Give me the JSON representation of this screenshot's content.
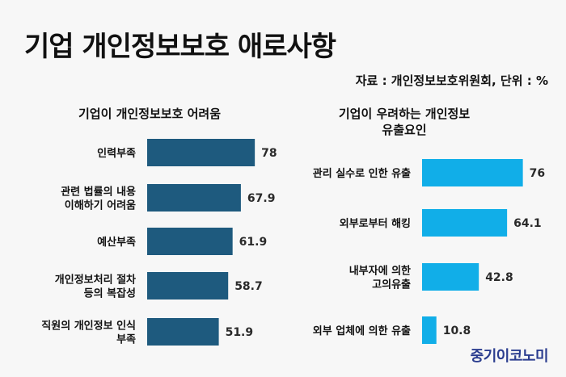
{
  "title": "기업 개인정보보호 애로사항",
  "source": "자료 : 개인정보보호위원회, 단위 : %",
  "brand": "중기이코노미",
  "colors": {
    "left_bar": "#1e5a7e",
    "right_bar": "#11aee8",
    "value_text": "#2a2a2a"
  },
  "chart_data": [
    {
      "type": "bar",
      "orientation": "horizontal",
      "title": "기업이 개인정보보호 어려움",
      "categories": [
        [
          "인력부족"
        ],
        [
          "관련 법률의 내용",
          "이해하기 어려움"
        ],
        [
          "예산부족"
        ],
        [
          "개인정보처리 절차",
          "등의 복잡성"
        ],
        [
          "직원의 개인정보 인식",
          "부족"
        ]
      ],
      "values": [
        78,
        67.9,
        61.9,
        58.7,
        51.9
      ],
      "value_labels": [
        "78",
        "67.9",
        "61.9",
        "58.7",
        "51.9"
      ],
      "unit": "%"
    },
    {
      "type": "bar",
      "orientation": "horizontal",
      "title": "기업이 우려하는 개인정보 유출요인",
      "title_lines": [
        "기업이 우려하는 개인정보",
        "유출요인"
      ],
      "categories": [
        [
          "관리 실수로 인한 유출"
        ],
        [
          "외부로부터 해킹"
        ],
        [
          "내부자에 의한",
          "고의유출"
        ],
        [
          "외부 업체에 의한 유출"
        ]
      ],
      "values": [
        76,
        64.1,
        42.8,
        10.8
      ],
      "value_labels": [
        "76",
        "64.1",
        "42.8",
        "10.8"
      ],
      "unit": "%"
    }
  ]
}
